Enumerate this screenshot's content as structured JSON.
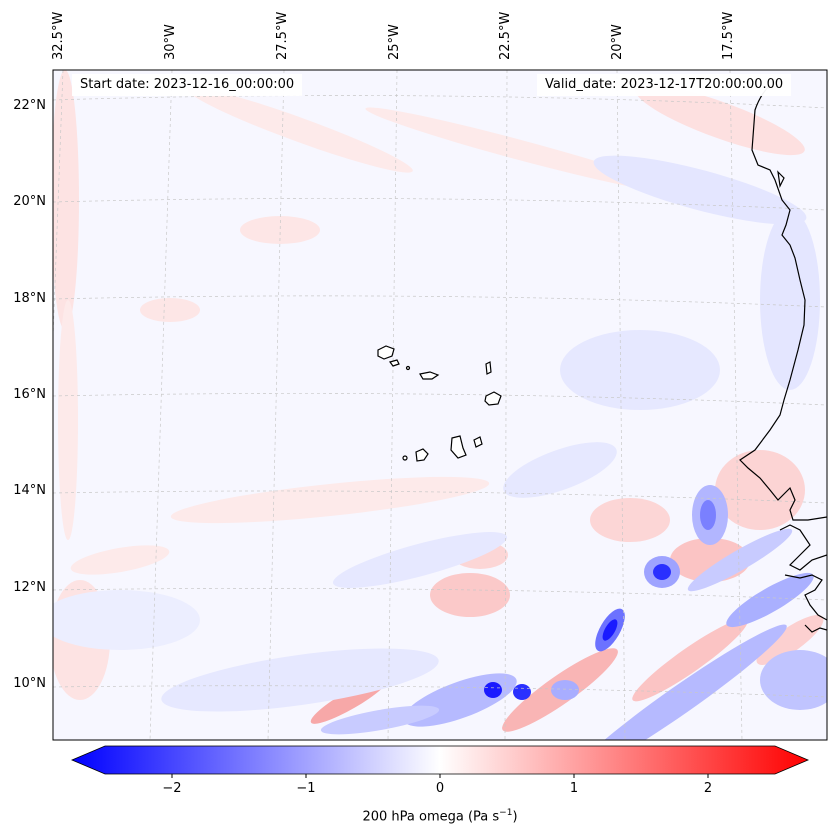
{
  "map": {
    "start_date_text": "Start date: 2023-12-16_00:00:00",
    "valid_date_text": "Valid_date: 2023-12-17T20:00:00.00",
    "lon_labels": [
      "32.5°W",
      "30°W",
      "27.5°W",
      "25°W",
      "22.5°W",
      "20°W",
      "17.5°W"
    ],
    "lat_labels": [
      "22°N",
      "20°N",
      "18°N",
      "16°N",
      "14°N",
      "12°N",
      "10°N"
    ],
    "field_colors": {
      "background": "#f7f7ff",
      "positive_light": "#fde0e0",
      "positive_mid": "#f8a8a8",
      "negative_light": "#e4e6ff",
      "negative_mid": "#9ea3ff",
      "negative_strong": "#1a1aff",
      "coastline": "#000000",
      "gridline": "#c8c8c8"
    }
  },
  "colorbar": {
    "label_main": "200 hPa omega (Pa s",
    "label_sup": "−1",
    "label_close": ")",
    "ticks": [
      "−2",
      "−1",
      "0",
      "1",
      "2"
    ],
    "range": [
      -2.6,
      2.6
    ],
    "colors": {
      "min": "#0000ff",
      "mid": "#ffffff",
      "max": "#ff0000"
    }
  }
}
